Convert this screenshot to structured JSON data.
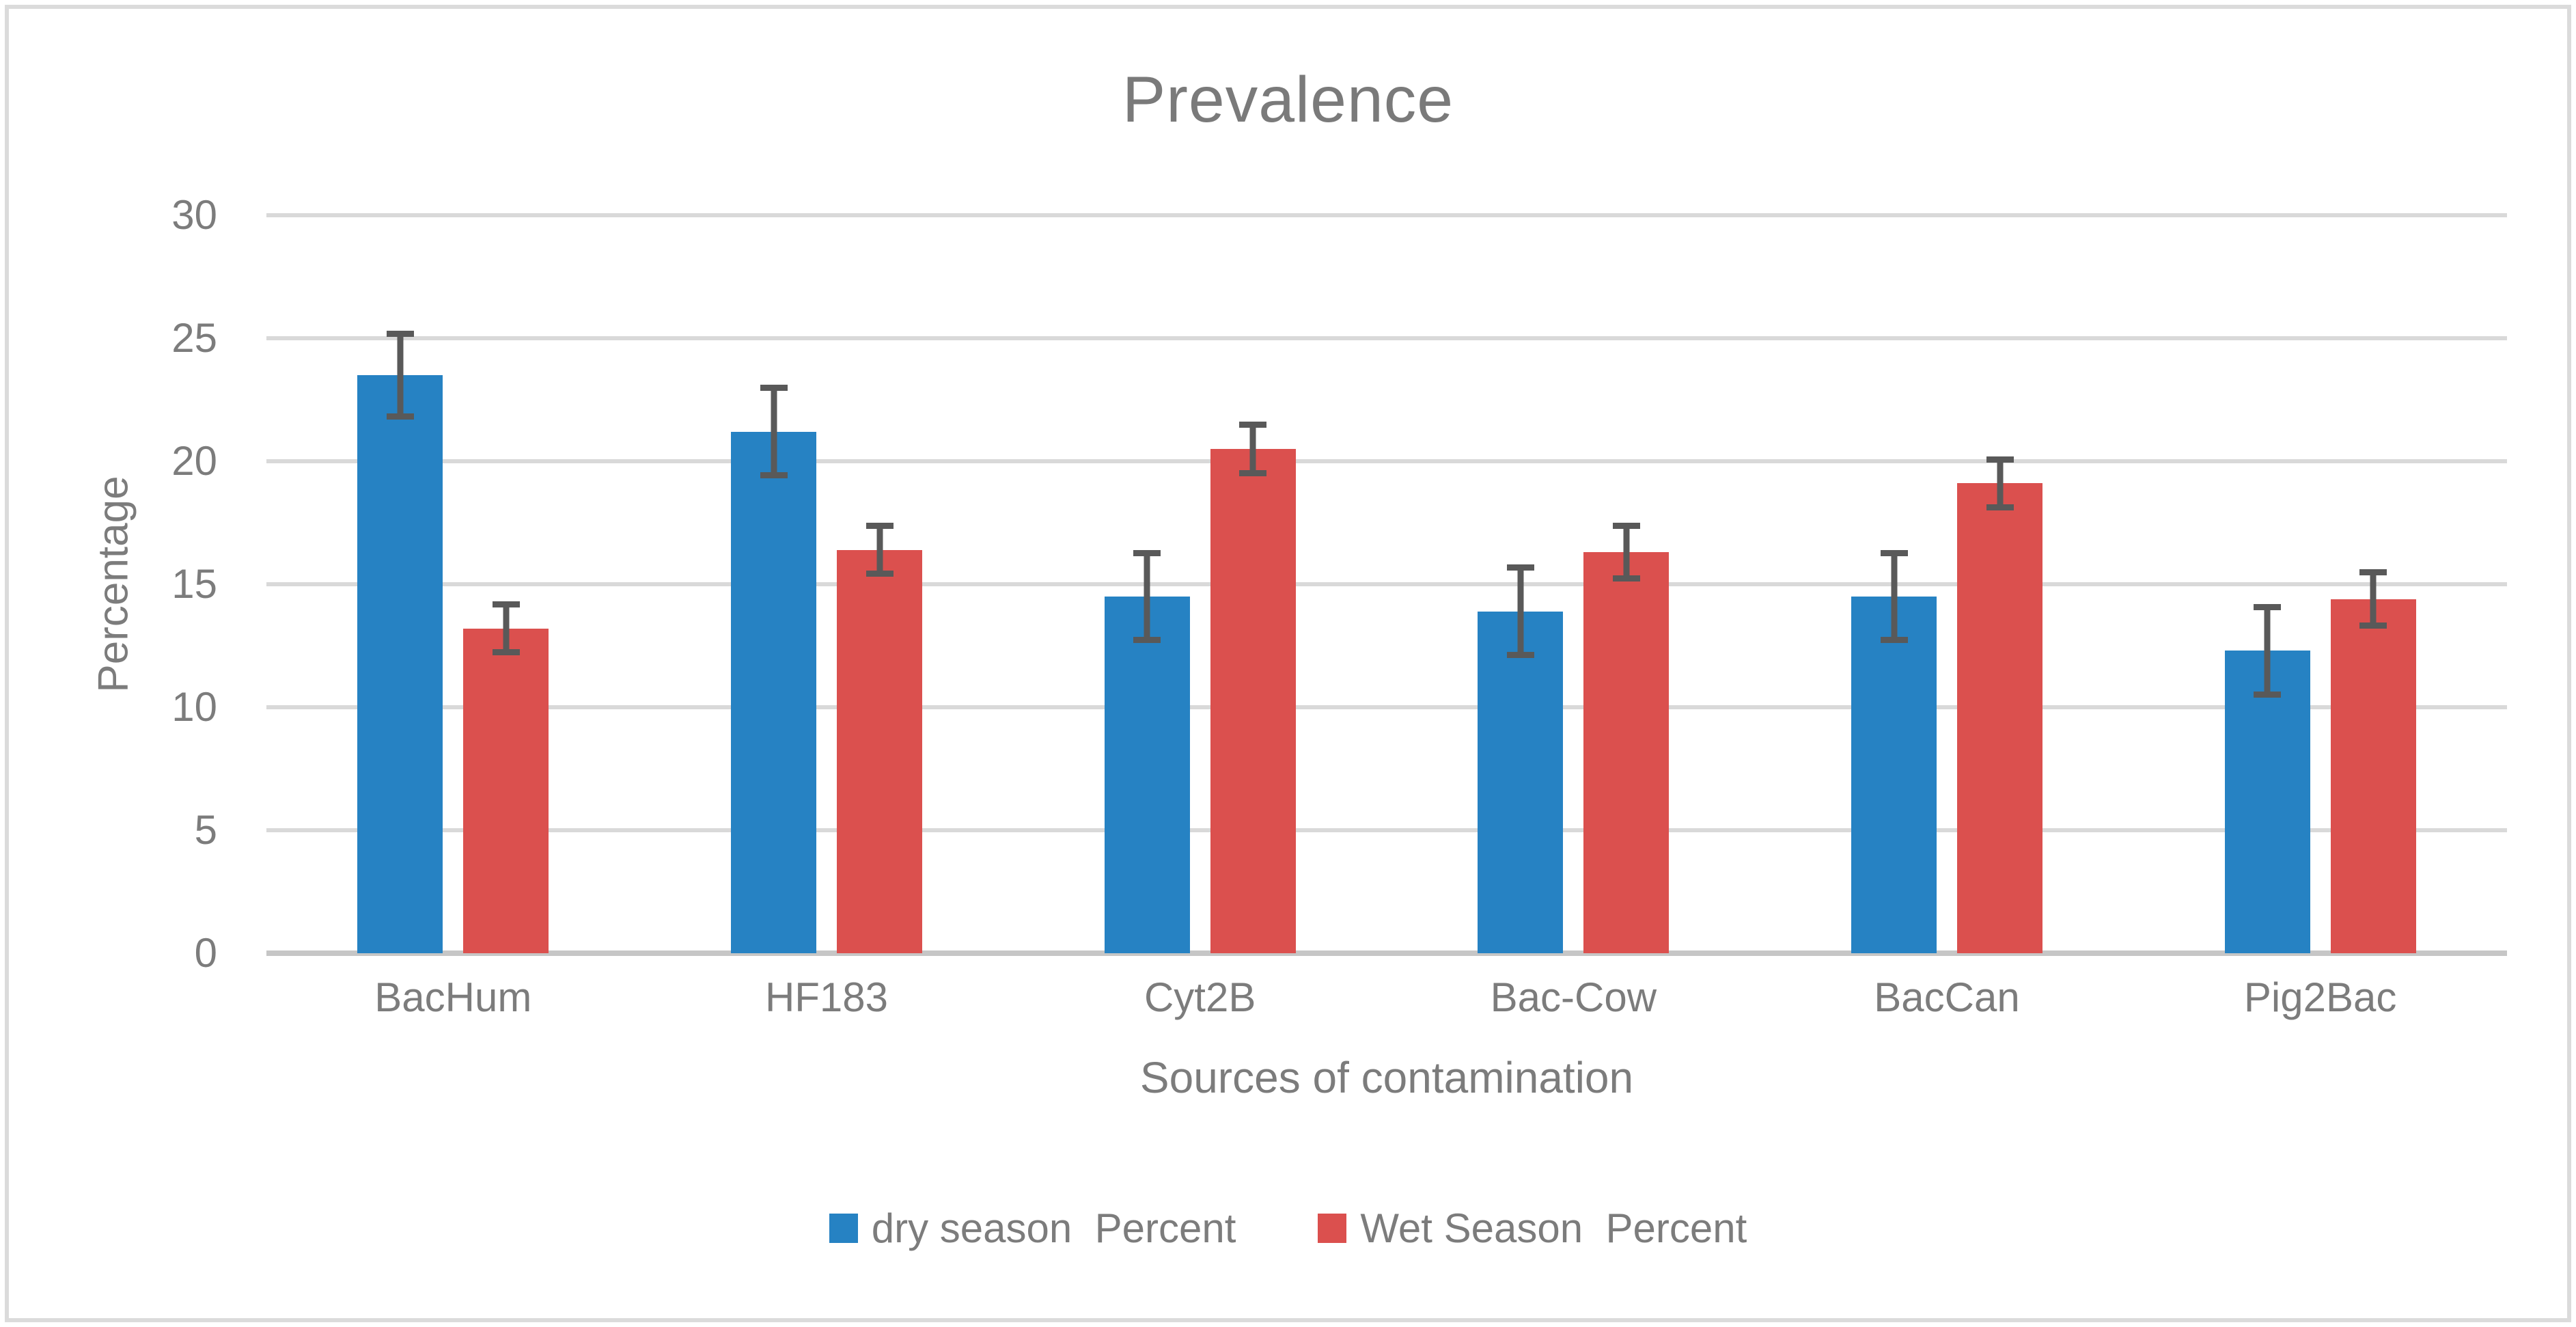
{
  "figure": {
    "background": "#FFFFFF",
    "border_color": "#DBDBDB"
  },
  "chart_data": {
    "type": "bar",
    "title": "Prevalence",
    "xlabel": "Sources of contamination",
    "ylabel": "Percentage",
    "ylim": [
      0,
      30
    ],
    "y_ticks": [
      0,
      5,
      10,
      15,
      20,
      25,
      30
    ],
    "grid": true,
    "legend_position": "bottom",
    "categories": [
      "BacHum",
      "HF183",
      "Cyt2B",
      "Bac-Cow",
      "BacCan",
      "Pig2Bac"
    ],
    "series": [
      {
        "name": "dry season  Percent",
        "color": "#2682C3",
        "values": [
          23.5,
          21.2,
          14.5,
          13.9,
          14.5,
          12.3
        ],
        "error_bars": [
          1.8,
          1.9,
          1.9,
          1.9,
          1.9,
          1.9
        ]
      },
      {
        "name": "Wet Season  Percent",
        "color": "#DB504E",
        "values": [
          13.2,
          16.4,
          20.5,
          16.3,
          19.1,
          14.4
        ],
        "error_bars": [
          1.1,
          1.1,
          1.1,
          1.2,
          1.1,
          1.2
        ]
      }
    ],
    "style": {
      "gridline_color": "#D9D9D9",
      "zero_line_color": "#C6C6C6",
      "error_bar_color": "#595959",
      "text_color": "#7C7C7C",
      "title_color": "#7A7A7A"
    }
  }
}
